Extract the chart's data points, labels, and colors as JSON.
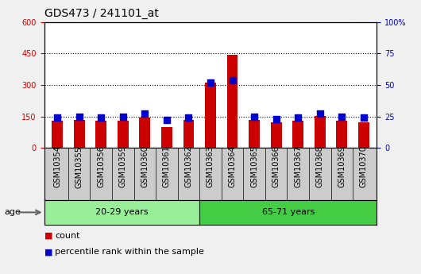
{
  "title": "GDS473 / 241101_at",
  "samples": [
    "GSM10354",
    "GSM10355",
    "GSM10356",
    "GSM10359",
    "GSM10360",
    "GSM10361",
    "GSM10362",
    "GSM10363",
    "GSM10364",
    "GSM10365",
    "GSM10366",
    "GSM10367",
    "GSM10368",
    "GSM10369",
    "GSM10370"
  ],
  "counts": [
    128,
    133,
    130,
    130,
    145,
    100,
    132,
    310,
    445,
    132,
    122,
    130,
    152,
    130,
    122
  ],
  "percentiles": [
    24,
    25,
    24,
    25,
    27,
    22,
    24,
    52,
    54,
    25,
    23,
    24,
    27,
    25,
    24
  ],
  "groups": [
    {
      "label": "20-29 years",
      "start": 0,
      "end": 7,
      "color": "#99ee99"
    },
    {
      "label": "65-71 years",
      "start": 7,
      "end": 15,
      "color": "#44cc44"
    }
  ],
  "bar_color": "#cc0000",
  "dot_color": "#0000cc",
  "ylim_left": [
    0,
    600
  ],
  "ylim_right": [
    0,
    100
  ],
  "yticks_left": [
    0,
    150,
    300,
    450,
    600
  ],
  "yticks_right": [
    0,
    25,
    50,
    75,
    100
  ],
  "bg_color": "#cccccc",
  "fig_bg": "#f0f0f0",
  "age_label": "age",
  "legend_count": "count",
  "legend_pct": "percentile rank within the sample",
  "title_fontsize": 10,
  "tick_fontsize": 7,
  "axis_fontsize": 8
}
